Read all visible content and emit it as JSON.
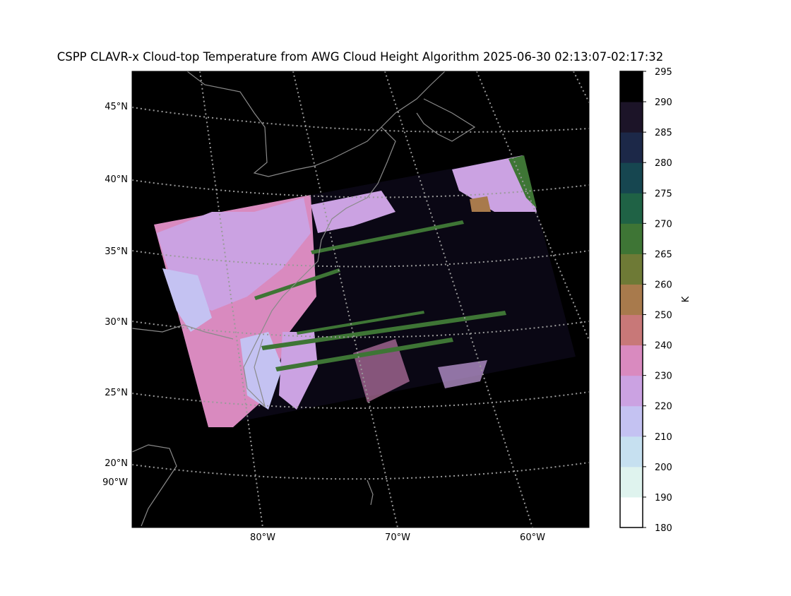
{
  "title": "CSPP CLAVR-x Cloud-top Temperature from AWG Cloud Height Algorithm 2025-06-30 02:13:07-02:17:32",
  "map": {
    "latitude_labels": [
      "45°N",
      "40°N",
      "35°N",
      "30°N",
      "25°N",
      "20°N",
      "90°W"
    ],
    "longitude_labels": [
      "80°W",
      "70°W",
      "60°W"
    ]
  },
  "colorbar": {
    "label": "K",
    "ticks": [
      180,
      190,
      200,
      210,
      220,
      230,
      240,
      250,
      260,
      265,
      270,
      275,
      280,
      285,
      290,
      295
    ],
    "colors": [
      "#ffffff",
      "#dff3ee",
      "#c6e0f0",
      "#c4c2f2",
      "#cba2e2",
      "#d98abf",
      "#c87878",
      "#a87a4c",
      "#6e7a36",
      "#3e7535",
      "#1f6245",
      "#164650",
      "#1c2848",
      "#1c1428",
      "#000000"
    ]
  }
}
